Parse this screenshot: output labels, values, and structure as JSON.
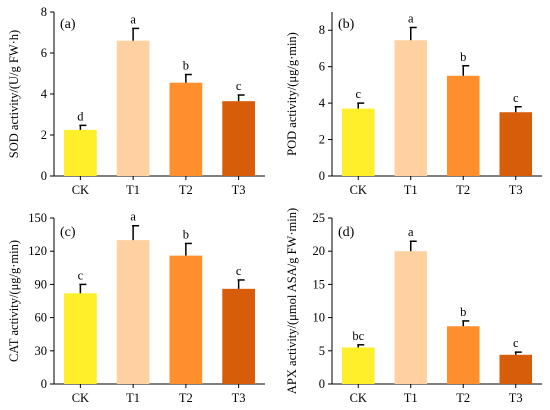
{
  "chart_data": [
    {
      "type": "bar",
      "panel_label": "(a)",
      "ylabel": "SOD activity/(U/g FW·h)",
      "categories": [
        "CK",
        "T1",
        "T2",
        "T3"
      ],
      "values": [
        2.25,
        6.6,
        4.55,
        3.65
      ],
      "errors": [
        0.22,
        0.6,
        0.4,
        0.3
      ],
      "significance": [
        "d",
        "a",
        "b",
        "c"
      ],
      "ylim": [
        0,
        8
      ],
      "yticks": [
        "0",
        "2",
        "4",
        "6",
        "8"
      ]
    },
    {
      "type": "bar",
      "panel_label": "(b)",
      "ylabel": "POD activity/(μg/g·min)",
      "categories": [
        "CK",
        "T1",
        "T2",
        "T3"
      ],
      "values": [
        3.7,
        7.45,
        5.5,
        3.5
      ],
      "errors": [
        0.3,
        0.7,
        0.55,
        0.3
      ],
      "significance": [
        "c",
        "a",
        "b",
        "c"
      ],
      "ylim": [
        0,
        9
      ],
      "yticks": [
        "0",
        "2",
        "4",
        "6",
        "8"
      ]
    },
    {
      "type": "bar",
      "panel_label": "(c)",
      "ylabel": "CAT activity/(μg/g·min)",
      "categories": [
        "CK",
        "T1",
        "T2",
        "T3"
      ],
      "values": [
        82,
        130,
        116,
        86
      ],
      "errors": [
        8,
        13,
        11,
        8
      ],
      "significance": [
        "c",
        "a",
        "b",
        "c"
      ],
      "ylim": [
        0,
        150
      ],
      "yticks": [
        "0",
        "30",
        "60",
        "90",
        "120",
        "150"
      ]
    },
    {
      "type": "bar",
      "panel_label": "(d)",
      "ylabel": "APX activity/(μmol ASA/g FW·min)",
      "categories": [
        "CK",
        "T1",
        "T2",
        "T3"
      ],
      "values": [
        5.5,
        20,
        8.7,
        4.4
      ],
      "errors": [
        0.4,
        1.5,
        0.8,
        0.4
      ],
      "significance": [
        "bc",
        "a",
        "b",
        "c"
      ],
      "ylim": [
        0,
        25
      ],
      "yticks": [
        "0",
        "5",
        "10",
        "15",
        "20",
        "25"
      ]
    }
  ],
  "colors": {
    "CK": "#ffee2a",
    "T1": "#ffd0a0",
    "T2": "#ff8f2c",
    "T3": "#d85d0a"
  }
}
